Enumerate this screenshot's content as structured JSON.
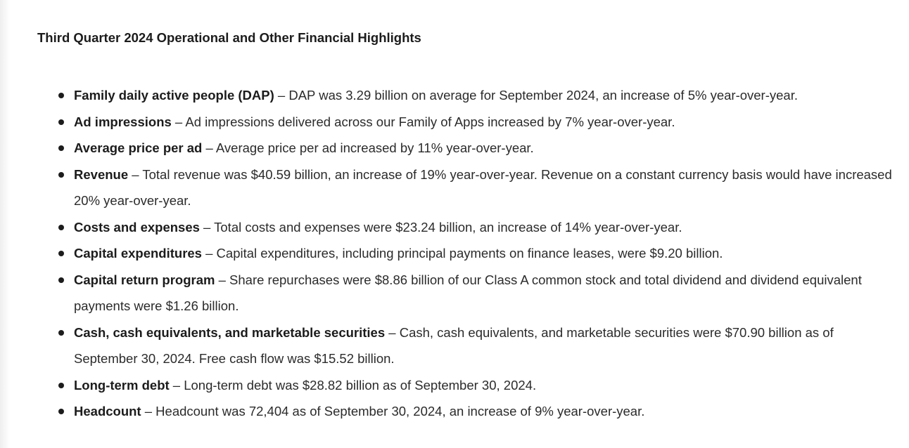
{
  "page": {
    "title": "Third Quarter 2024 Operational and Other Financial Highlights"
  },
  "highlights": [
    {
      "term": "Family daily active people (DAP)",
      "sep": " – ",
      "text": "DAP was 3.29 billion on average for September 2024, an increase of 5% year-over-year."
    },
    {
      "term": "Ad impressions",
      "sep": " – ",
      "text": "Ad impressions delivered across our Family of Apps increased by 7% year-over-year."
    },
    {
      "term": "Average price per ad",
      "sep": " – ",
      "text": "Average price per ad increased by 11% year-over-year."
    },
    {
      "term": "Revenue",
      "sep": " – ",
      "text": "Total revenue was $40.59 billion, an increase of 19% year-over-year. Revenue on a constant currency basis would have increased 20% year-over-year."
    },
    {
      "term": "Costs and expenses",
      "sep": " – ",
      "text": "Total costs and expenses were $23.24 billion, an increase of 14% year-over-year."
    },
    {
      "term": "Capital expenditures",
      "sep": " – ",
      "text": "Capital expenditures, including principal payments on finance leases, were $9.20 billion."
    },
    {
      "term": "Capital return program",
      "sep": " – ",
      "text": "Share repurchases were $8.86 billion of our Class A common stock and total dividend and dividend equivalent payments were $1.26 billion."
    },
    {
      "term": "Cash, cash equivalents, and marketable securities",
      "sep": " – ",
      "text": "Cash, cash equivalents, and marketable securities were $70.90 billion as of September 30, 2024. Free cash flow was $15.52 billion."
    },
    {
      "term": "Long-term debt",
      "sep": " – ",
      "text": "Long-term debt was $28.82 billion as of September 30, 2024."
    },
    {
      "term": "Headcount",
      "sep": " – ",
      "text": "Headcount was 72,404 as of September 30, 2024, an increase of 9% year-over-year."
    }
  ]
}
